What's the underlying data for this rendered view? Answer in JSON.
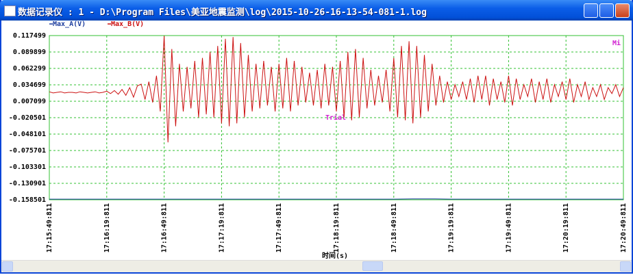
{
  "window": {
    "title": "数据记录仪 : 1 - D:\\Program Files\\美亚地震监测\\log\\2015-10-26-16-13-54-081-1.log"
  },
  "chart_data": {
    "type": "line",
    "x_label": "时间(s)",
    "annotations": [
      "Mi",
      "Trial"
    ],
    "xlim": [
      0,
      300
    ],
    "xticks": [
      {
        "value": 0,
        "label": "17:15:49:811"
      },
      {
        "value": 30,
        "label": "17:16:19:811"
      },
      {
        "value": 60,
        "label": "17:16:49:811"
      },
      {
        "value": 90,
        "label": "17:17:19:811"
      },
      {
        "value": 120,
        "label": "17:17:49:811"
      },
      {
        "value": 150,
        "label": "17:18:19:811"
      },
      {
        "value": 180,
        "label": "17:18:49:811"
      },
      {
        "value": 210,
        "label": "17:19:19:811"
      },
      {
        "value": 240,
        "label": "17:19:49:811"
      },
      {
        "value": 270,
        "label": "17:20:19:811"
      },
      {
        "value": 300,
        "label": "17:20:49:811"
      }
    ],
    "ylim": [
      -0.158501,
      0.117499
    ],
    "yticks": [
      0.117499,
      0.089899,
      0.062299,
      0.034699,
      0.007099,
      -0.020501,
      -0.048101,
      -0.075701,
      -0.103301,
      -0.130901,
      -0.158501
    ],
    "grid": true,
    "series": [
      {
        "name": "Max_A(V)",
        "color": "#1c3c9c",
        "x": [
          0,
          10,
          20,
          30,
          40,
          50,
          60,
          70,
          80,
          90,
          100,
          110,
          120,
          130,
          140,
          150,
          160,
          170,
          180,
          190,
          200,
          210,
          220,
          230,
          240,
          250,
          260,
          270,
          280,
          290,
          300
        ],
        "values": [
          -0.1575,
          -0.1575,
          -0.1575,
          -0.1575,
          -0.1575,
          -0.1575,
          -0.1575,
          -0.1575,
          -0.1575,
          -0.1575,
          -0.1575,
          -0.1575,
          -0.1575,
          -0.1575,
          -0.1575,
          -0.1575,
          -0.1575,
          -0.1575,
          -0.1575,
          -0.157,
          -0.157,
          -0.1575,
          -0.1575,
          -0.1575,
          -0.1575,
          -0.1575,
          -0.1575,
          -0.1575,
          -0.1575,
          -0.1575,
          -0.1575
        ]
      },
      {
        "name": "Max_B(V)",
        "color": "#cc1010",
        "x": [
          0,
          2,
          4,
          6,
          8,
          10,
          12,
          14,
          16,
          18,
          20,
          22,
          24,
          26,
          28,
          30,
          32,
          34,
          36,
          38,
          40,
          42,
          44,
          46,
          48,
          50,
          52,
          54,
          56,
          58,
          60,
          62,
          64,
          66,
          68,
          70,
          72,
          74,
          76,
          78,
          80,
          82,
          84,
          86,
          88,
          90,
          92,
          94,
          96,
          98,
          100,
          102,
          104,
          106,
          108,
          110,
          112,
          114,
          116,
          118,
          120,
          122,
          124,
          126,
          128,
          130,
          132,
          134,
          136,
          138,
          140,
          142,
          144,
          146,
          148,
          150,
          152,
          154,
          156,
          158,
          160,
          162,
          164,
          166,
          168,
          170,
          172,
          174,
          176,
          178,
          180,
          182,
          184,
          186,
          188,
          190,
          192,
          194,
          196,
          198,
          200,
          202,
          204,
          206,
          208,
          210,
          212,
          214,
          216,
          218,
          220,
          222,
          224,
          226,
          228,
          230,
          232,
          234,
          236,
          238,
          240,
          242,
          244,
          246,
          248,
          250,
          252,
          254,
          256,
          258,
          260,
          262,
          264,
          266,
          268,
          270,
          272,
          274,
          276,
          278,
          280,
          282,
          284,
          286,
          288,
          290,
          292,
          294,
          296,
          298,
          300
        ],
        "values": [
          0.023,
          0.021,
          0.022,
          0.023,
          0.021,
          0.022,
          0.022,
          0.021,
          0.023,
          0.022,
          0.021,
          0.022,
          0.023,
          0.021,
          0.022,
          0.024,
          0.02,
          0.025,
          0.019,
          0.027,
          0.017,
          0.03,
          0.014,
          0.033,
          0.036,
          0.01,
          0.04,
          0.005,
          0.05,
          -0.01,
          0.117,
          -0.062,
          0.095,
          -0.035,
          0.07,
          -0.01,
          0.065,
          -0.005,
          0.075,
          -0.02,
          0.08,
          -0.015,
          0.09,
          -0.02,
          0.1,
          -0.03,
          0.112,
          -0.035,
          0.115,
          -0.03,
          0.105,
          -0.02,
          0.085,
          -0.01,
          0.07,
          -0.005,
          0.075,
          0.0,
          0.065,
          -0.01,
          0.07,
          -0.005,
          0.08,
          -0.01,
          0.075,
          0.0,
          0.065,
          0.005,
          0.055,
          0.0,
          0.06,
          -0.005,
          0.07,
          0.0,
          0.065,
          -0.01,
          0.075,
          -0.02,
          0.09,
          -0.025,
          0.095,
          -0.02,
          0.08,
          -0.005,
          0.06,
          0.0,
          0.05,
          0.005,
          0.06,
          -0.01,
          0.08,
          -0.02,
          0.1,
          -0.025,
          0.108,
          -0.03,
          0.1,
          -0.02,
          0.085,
          -0.01,
          0.07,
          0.0,
          0.05,
          0.005,
          0.04,
          0.01,
          0.035,
          0.015,
          0.04,
          0.01,
          0.045,
          0.005,
          0.05,
          0.01,
          0.05,
          0.0,
          0.045,
          0.01,
          0.04,
          0.005,
          0.05,
          0.0,
          0.045,
          0.01,
          0.035,
          0.015,
          0.045,
          0.005,
          0.04,
          0.01,
          0.045,
          0.005,
          0.035,
          0.015,
          0.04,
          0.01,
          0.045,
          0.005,
          0.035,
          0.015,
          0.04,
          0.01,
          0.03,
          0.015,
          0.035,
          0.01,
          0.03,
          0.02,
          0.035,
          0.015,
          0.03
        ]
      }
    ]
  }
}
